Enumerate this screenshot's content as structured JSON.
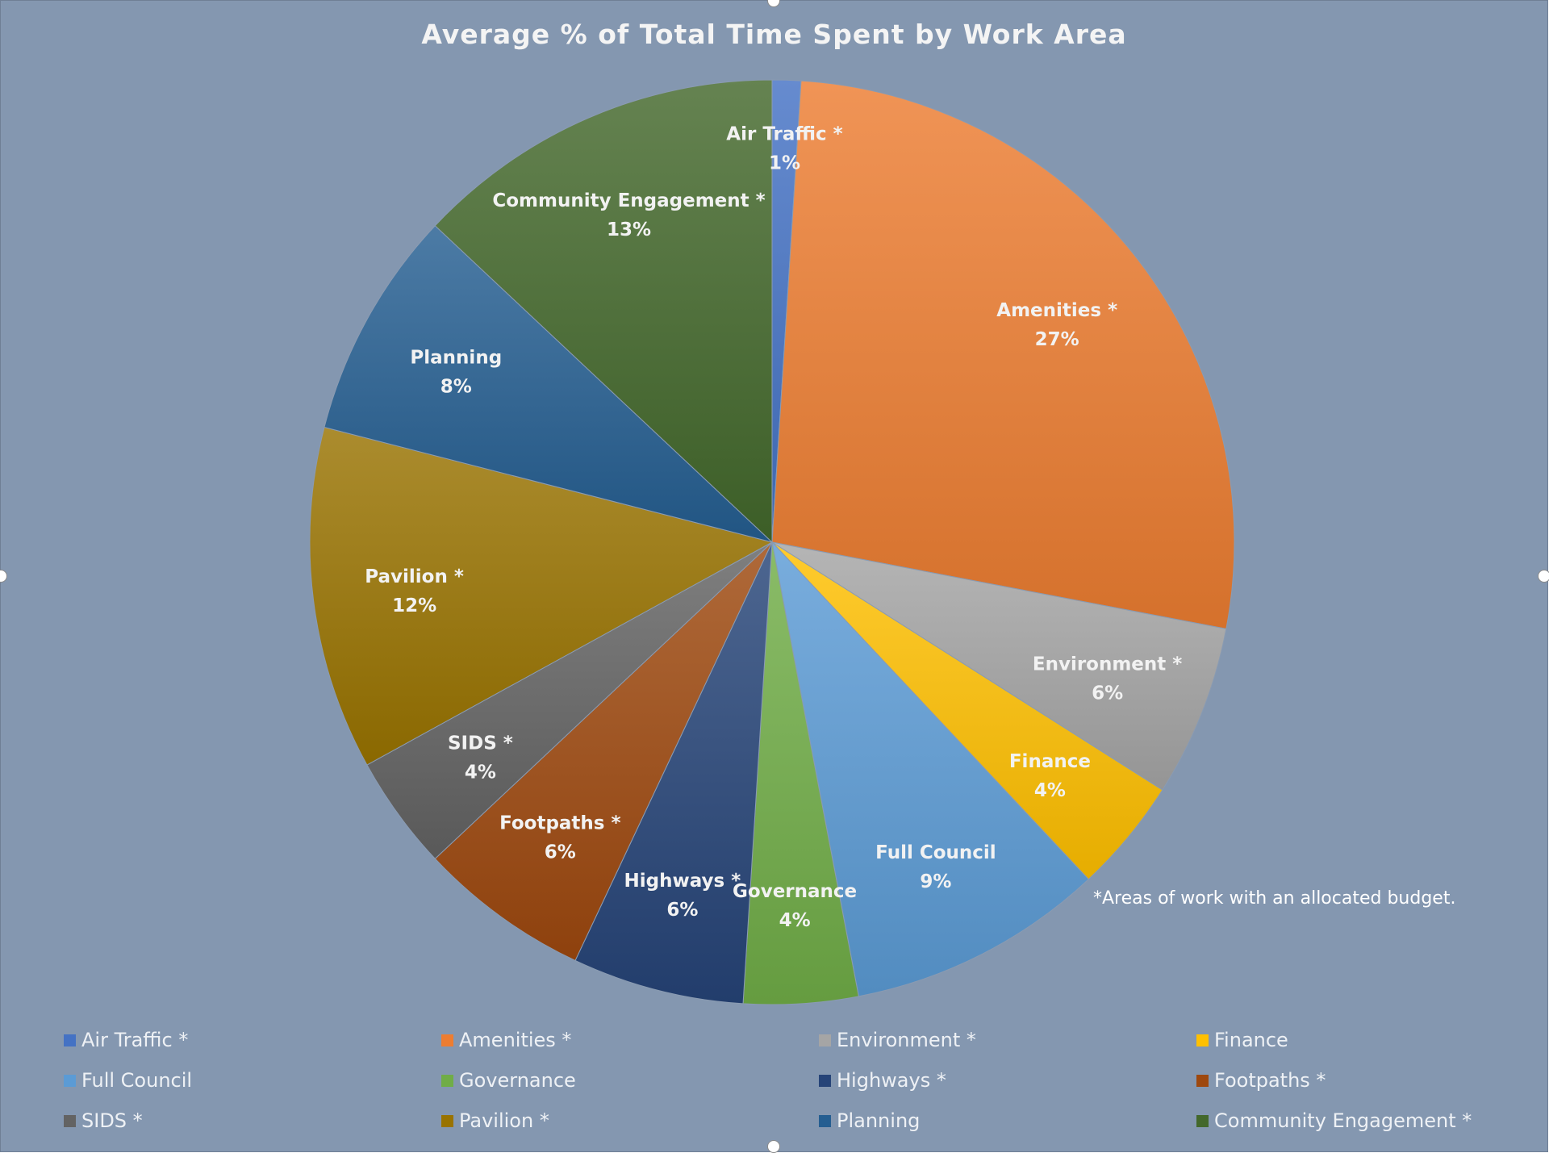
{
  "chart_data": {
    "type": "pie",
    "title": "Average % of Total Time Spent by Work Area",
    "footnote": "*Areas of work with an allocated budget.",
    "legend_position": "bottom",
    "slices": [
      {
        "label": "Air Traffic *",
        "value": 1,
        "value_label": "1%",
        "color": "#4472c4"
      },
      {
        "label": "Amenities *",
        "value": 27,
        "value_label": "27%",
        "color": "#ed7d31"
      },
      {
        "label": "Environment *",
        "value": 6,
        "value_label": "6%",
        "color": "#a5a5a5"
      },
      {
        "label": "Finance",
        "value": 4,
        "value_label": "4%",
        "color": "#ffc000"
      },
      {
        "label": "Full Council",
        "value": 9,
        "value_label": "9%",
        "color": "#5b9bd5"
      },
      {
        "label": "Governance",
        "value": 4,
        "value_label": "4%",
        "color": "#70ad47"
      },
      {
        "label": "Highways *",
        "value": 6,
        "value_label": "6%",
        "color": "#264478"
      },
      {
        "label": "Footpaths *",
        "value": 6,
        "value_label": "6%",
        "color": "#9e480e"
      },
      {
        "label": "SIDS *",
        "value": 4,
        "value_label": "4%",
        "color": "#636363"
      },
      {
        "label": "Pavilion *",
        "value": 12,
        "value_label": "12%",
        "color": "#997300"
      },
      {
        "label": "Planning",
        "value": 8,
        "value_label": "8%",
        "color": "#255e91"
      },
      {
        "label": "Community Engagement *",
        "value": 13,
        "value_label": "13%",
        "color": "#43682b"
      }
    ]
  }
}
